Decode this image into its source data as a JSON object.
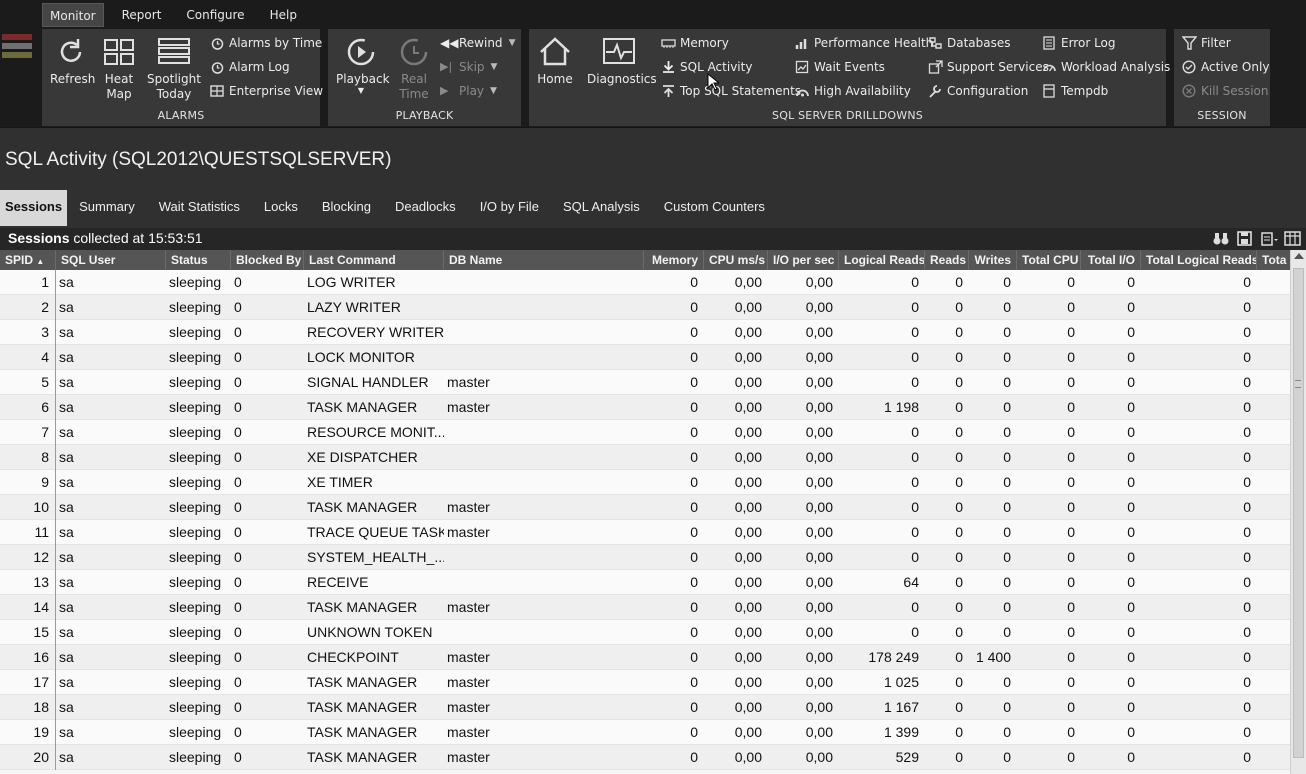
{
  "menu": [
    "Monitor",
    "Report",
    "Configure",
    "Help"
  ],
  "alarms": {
    "group_label": "ALARMS",
    "refresh": "Refresh",
    "heat_map": [
      "Heat",
      "Map"
    ],
    "spotlight_today": [
      "Spotlight",
      "Today"
    ],
    "alarms_by_time": "Alarms by Time",
    "alarm_log": "Alarm Log",
    "enterprise_view": "Enterprise View"
  },
  "playback": {
    "group_label": "PLAYBACK",
    "playback": "Playback",
    "real_time": [
      "Real",
      "Time"
    ],
    "rewind": "Rewind",
    "skip": "Skip",
    "play": "Play"
  },
  "drilldowns": {
    "group_label": "SQL SERVER DRILLDOWNS",
    "home": "Home",
    "diagnostics": "Diagnostics",
    "memory": "Memory",
    "sql_activity": "SQL Activity",
    "top_sql": "Top SQL Statements",
    "performance_health": "Performance Health",
    "wait_events": "Wait Events",
    "high_availability": "High Availability",
    "databases": "Databases",
    "support_services": "Support Services",
    "configuration": "Configuration",
    "error_log": "Error Log",
    "workload_analysis": "Workload Analysis",
    "tempdb": "Tempdb"
  },
  "session": {
    "group_label": "SESSION",
    "filter": "Filter",
    "active_only": "Active Only",
    "kill_session": "Kill Session"
  },
  "page_title": "SQL Activity (SQL2012\\QUESTSQLSERVER)",
  "tabs": [
    "Sessions",
    "Summary",
    "Wait Statistics",
    "Locks",
    "Blocking",
    "Deadlocks",
    "I/O by File",
    "SQL Analysis",
    "Custom Counters"
  ],
  "sessions_caption": {
    "bold": "Sessions",
    "rest": " collected at 15:53:51"
  },
  "columns": [
    "SPID",
    "SQL User",
    "Status",
    "Blocked By",
    "Last Command",
    "DB Name",
    "Memory",
    "CPU ms/s",
    "I/O per sec",
    "Logical Reads",
    "Reads",
    "Writes",
    "Total CPU",
    "Total I/O",
    "Total Logical Reads",
    "Tota"
  ],
  "rows": [
    [
      "1",
      "sa",
      "sleeping",
      "0",
      "LOG WRITER",
      "",
      "0",
      "0,00",
      "0,00",
      "0",
      "0",
      "0",
      "0",
      "0",
      "0"
    ],
    [
      "2",
      "sa",
      "sleeping",
      "0",
      "LAZY WRITER",
      "",
      "0",
      "0,00",
      "0,00",
      "0",
      "0",
      "0",
      "0",
      "0",
      "0"
    ],
    [
      "3",
      "sa",
      "sleeping",
      "0",
      "RECOVERY WRITER",
      "",
      "0",
      "0,00",
      "0,00",
      "0",
      "0",
      "0",
      "0",
      "0",
      "0"
    ],
    [
      "4",
      "sa",
      "sleeping",
      "0",
      "LOCK MONITOR",
      "",
      "0",
      "0,00",
      "0,00",
      "0",
      "0",
      "0",
      "0",
      "0",
      "0"
    ],
    [
      "5",
      "sa",
      "sleeping",
      "0",
      "SIGNAL HANDLER",
      "master",
      "0",
      "0,00",
      "0,00",
      "0",
      "0",
      "0",
      "0",
      "0",
      "0"
    ],
    [
      "6",
      "sa",
      "sleeping",
      "0",
      "TASK MANAGER",
      "master",
      "0",
      "0,00",
      "0,00",
      "1 198",
      "0",
      "0",
      "0",
      "0",
      "0"
    ],
    [
      "7",
      "sa",
      "sleeping",
      "0",
      "RESOURCE MONIT...",
      "",
      "0",
      "0,00",
      "0,00",
      "0",
      "0",
      "0",
      "0",
      "0",
      "0"
    ],
    [
      "8",
      "sa",
      "sleeping",
      "0",
      "XE DISPATCHER",
      "",
      "0",
      "0,00",
      "0,00",
      "0",
      "0",
      "0",
      "0",
      "0",
      "0"
    ],
    [
      "9",
      "sa",
      "sleeping",
      "0",
      "XE TIMER",
      "",
      "0",
      "0,00",
      "0,00",
      "0",
      "0",
      "0",
      "0",
      "0",
      "0"
    ],
    [
      "10",
      "sa",
      "sleeping",
      "0",
      "TASK MANAGER",
      "master",
      "0",
      "0,00",
      "0,00",
      "0",
      "0",
      "0",
      "0",
      "0",
      "0"
    ],
    [
      "11",
      "sa",
      "sleeping",
      "0",
      "TRACE QUEUE TASK",
      "master",
      "0",
      "0,00",
      "0,00",
      "0",
      "0",
      "0",
      "0",
      "0",
      "0"
    ],
    [
      "12",
      "sa",
      "sleeping",
      "0",
      "SYSTEM_HEALTH_...",
      "",
      "0",
      "0,00",
      "0,00",
      "0",
      "0",
      "0",
      "0",
      "0",
      "0"
    ],
    [
      "13",
      "sa",
      "sleeping",
      "0",
      "RECEIVE",
      "",
      "0",
      "0,00",
      "0,00",
      "64",
      "0",
      "0",
      "0",
      "0",
      "0"
    ],
    [
      "14",
      "sa",
      "sleeping",
      "0",
      "TASK MANAGER",
      "master",
      "0",
      "0,00",
      "0,00",
      "0",
      "0",
      "0",
      "0",
      "0",
      "0"
    ],
    [
      "15",
      "sa",
      "sleeping",
      "0",
      "UNKNOWN TOKEN",
      "",
      "0",
      "0,00",
      "0,00",
      "0",
      "0",
      "0",
      "0",
      "0",
      "0"
    ],
    [
      "16",
      "sa",
      "sleeping",
      "0",
      "CHECKPOINT",
      "master",
      "0",
      "0,00",
      "0,00",
      "178 249",
      "0",
      "1 400",
      "0",
      "0",
      "0"
    ],
    [
      "17",
      "sa",
      "sleeping",
      "0",
      "TASK MANAGER",
      "master",
      "0",
      "0,00",
      "0,00",
      "1 025",
      "0",
      "0",
      "0",
      "0",
      "0"
    ],
    [
      "18",
      "sa",
      "sleeping",
      "0",
      "TASK MANAGER",
      "master",
      "0",
      "0,00",
      "0,00",
      "1 167",
      "0",
      "0",
      "0",
      "0",
      "0"
    ],
    [
      "19",
      "sa",
      "sleeping",
      "0",
      "TASK MANAGER",
      "master",
      "0",
      "0,00",
      "0,00",
      "1 399",
      "0",
      "0",
      "0",
      "0",
      "0"
    ],
    [
      "20",
      "sa",
      "sleeping",
      "0",
      "TASK MANAGER",
      "master",
      "0",
      "0,00",
      "0,00",
      "529",
      "0",
      "0",
      "0",
      "0",
      "0"
    ]
  ],
  "colors": {
    "ribbon_bg": "#1b1b1b",
    "group_bg": "#383838",
    "grid_header": "#555555",
    "active_tab": "#d8d8d8"
  }
}
